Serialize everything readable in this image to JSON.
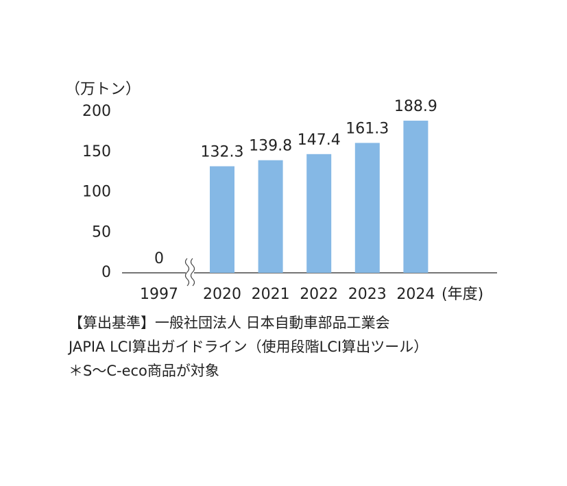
{
  "chart_data": {
    "type": "bar",
    "y_unit": "（万トン）",
    "x_unit": "(年度)",
    "categories": [
      "1997",
      "2020",
      "2021",
      "2022",
      "2023",
      "2024"
    ],
    "values": [
      0,
      132.3,
      139.8,
      147.4,
      161.3,
      188.9
    ],
    "color": "#85b8e5",
    "ylim": [
      0,
      200
    ],
    "yticks": [
      0,
      50,
      100,
      150,
      200
    ],
    "notes": [
      "【算出基準】一般社団法人 日本自動車部品工業会",
      "JAPIA LCI算出ガイドライン（使用段階LCI算出ツール）",
      "＊S～C-eco商品が対象"
    ]
  }
}
